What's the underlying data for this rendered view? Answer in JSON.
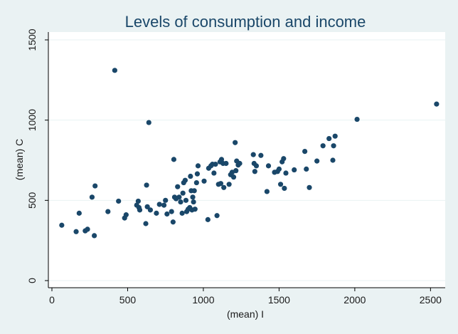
{
  "chart_data": {
    "type": "scatter",
    "title": "Levels of consumption and income",
    "xlabel": "(mean) I",
    "ylabel": "(mean) C",
    "xlim": [
      0,
      2550
    ],
    "ylim": [
      0,
      1500
    ],
    "x_ticks": [
      0,
      500,
      1000,
      1500,
      2000,
      2500
    ],
    "y_ticks": [
      0,
      500,
      1000,
      1500
    ],
    "grid": true,
    "colors": {
      "background": "#eaf2f3",
      "plot_area": "#ffffff",
      "marker": "#1a4769",
      "title": "#1a4769"
    },
    "points": [
      {
        "x": 65,
        "y": 345
      },
      {
        "x": 160,
        "y": 305
      },
      {
        "x": 180,
        "y": 420
      },
      {
        "x": 220,
        "y": 310
      },
      {
        "x": 235,
        "y": 320
      },
      {
        "x": 265,
        "y": 520
      },
      {
        "x": 280,
        "y": 280
      },
      {
        "x": 285,
        "y": 590
      },
      {
        "x": 370,
        "y": 430
      },
      {
        "x": 415,
        "y": 1310
      },
      {
        "x": 440,
        "y": 495
      },
      {
        "x": 480,
        "y": 390
      },
      {
        "x": 490,
        "y": 410
      },
      {
        "x": 560,
        "y": 470
      },
      {
        "x": 570,
        "y": 495
      },
      {
        "x": 575,
        "y": 455
      },
      {
        "x": 580,
        "y": 440
      },
      {
        "x": 620,
        "y": 355
      },
      {
        "x": 625,
        "y": 595
      },
      {
        "x": 630,
        "y": 460
      },
      {
        "x": 640,
        "y": 985
      },
      {
        "x": 650,
        "y": 440
      },
      {
        "x": 690,
        "y": 420
      },
      {
        "x": 710,
        "y": 475
      },
      {
        "x": 740,
        "y": 470
      },
      {
        "x": 750,
        "y": 500
      },
      {
        "x": 760,
        "y": 415
      },
      {
        "x": 790,
        "y": 430
      },
      {
        "x": 800,
        "y": 365
      },
      {
        "x": 805,
        "y": 755
      },
      {
        "x": 810,
        "y": 520
      },
      {
        "x": 820,
        "y": 510
      },
      {
        "x": 830,
        "y": 585
      },
      {
        "x": 840,
        "y": 520
      },
      {
        "x": 850,
        "y": 490
      },
      {
        "x": 860,
        "y": 420
      },
      {
        "x": 865,
        "y": 545
      },
      {
        "x": 870,
        "y": 610
      },
      {
        "x": 880,
        "y": 625
      },
      {
        "x": 885,
        "y": 500
      },
      {
        "x": 890,
        "y": 430
      },
      {
        "x": 900,
        "y": 445
      },
      {
        "x": 910,
        "y": 455
      },
      {
        "x": 915,
        "y": 650
      },
      {
        "x": 920,
        "y": 560
      },
      {
        "x": 925,
        "y": 440
      },
      {
        "x": 930,
        "y": 520
      },
      {
        "x": 935,
        "y": 490
      },
      {
        "x": 940,
        "y": 560
      },
      {
        "x": 945,
        "y": 445
      },
      {
        "x": 955,
        "y": 610
      },
      {
        "x": 960,
        "y": 665
      },
      {
        "x": 965,
        "y": 715
      },
      {
        "x": 1005,
        "y": 620
      },
      {
        "x": 1030,
        "y": 380
      },
      {
        "x": 1035,
        "y": 700
      },
      {
        "x": 1050,
        "y": 715
      },
      {
        "x": 1060,
        "y": 725
      },
      {
        "x": 1070,
        "y": 670
      },
      {
        "x": 1080,
        "y": 725
      },
      {
        "x": 1090,
        "y": 405
      },
      {
        "x": 1100,
        "y": 600
      },
      {
        "x": 1110,
        "y": 740
      },
      {
        "x": 1115,
        "y": 605
      },
      {
        "x": 1120,
        "y": 755
      },
      {
        "x": 1130,
        "y": 730
      },
      {
        "x": 1135,
        "y": 580
      },
      {
        "x": 1150,
        "y": 730
      },
      {
        "x": 1170,
        "y": 600
      },
      {
        "x": 1180,
        "y": 660
      },
      {
        "x": 1190,
        "y": 675
      },
      {
        "x": 1200,
        "y": 645
      },
      {
        "x": 1210,
        "y": 860
      },
      {
        "x": 1215,
        "y": 685
      },
      {
        "x": 1220,
        "y": 745
      },
      {
        "x": 1230,
        "y": 720
      },
      {
        "x": 1240,
        "y": 730
      },
      {
        "x": 1330,
        "y": 785
      },
      {
        "x": 1335,
        "y": 730
      },
      {
        "x": 1340,
        "y": 680
      },
      {
        "x": 1350,
        "y": 715
      },
      {
        "x": 1380,
        "y": 780
      },
      {
        "x": 1420,
        "y": 555
      },
      {
        "x": 1430,
        "y": 715
      },
      {
        "x": 1470,
        "y": 675
      },
      {
        "x": 1490,
        "y": 680
      },
      {
        "x": 1500,
        "y": 695
      },
      {
        "x": 1510,
        "y": 600
      },
      {
        "x": 1520,
        "y": 740
      },
      {
        "x": 1530,
        "y": 760
      },
      {
        "x": 1535,
        "y": 575
      },
      {
        "x": 1545,
        "y": 670
      },
      {
        "x": 1600,
        "y": 690
      },
      {
        "x": 1670,
        "y": 805
      },
      {
        "x": 1680,
        "y": 695
      },
      {
        "x": 1700,
        "y": 580
      },
      {
        "x": 1750,
        "y": 745
      },
      {
        "x": 1790,
        "y": 840
      },
      {
        "x": 1830,
        "y": 885
      },
      {
        "x": 1855,
        "y": 750
      },
      {
        "x": 1860,
        "y": 840
      },
      {
        "x": 1870,
        "y": 900
      },
      {
        "x": 2015,
        "y": 1005
      },
      {
        "x": 2540,
        "y": 1100
      }
    ]
  }
}
